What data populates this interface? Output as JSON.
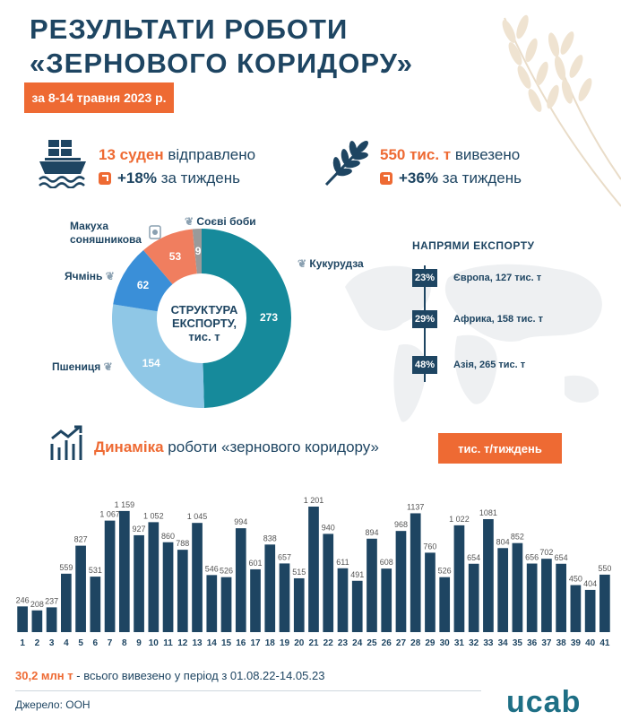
{
  "header": {
    "title_line1": "РЕЗУЛЬТАТИ РОБОТИ",
    "title_line2": "«ЗЕРНОВОГО КОРИДОРУ»",
    "date_range": "за 8-14 травня 2023 р."
  },
  "stats": {
    "ships": {
      "value": "13 суден",
      "text": "відправлено",
      "change": "+18%",
      "change_text": "за тиждень",
      "icon": "ship-icon"
    },
    "tonnage": {
      "value": "550 тис. т",
      "text": "вивезено",
      "change": "+36%",
      "change_text": "за тиждень",
      "icon": "wheat-icon"
    }
  },
  "structure": {
    "center_line1": "СТРУКТУРА",
    "center_line2": "ЕКСПОРТУ,",
    "center_line3": "тис. т"
  },
  "directions": {
    "title": "НАПРЯМИ ЕКСПОРТУ",
    "items": [
      {
        "pct": "23%",
        "label": "Європа, 127 тис. т"
      },
      {
        "pct": "29%",
        "label": "Африка, 158 тис. т"
      },
      {
        "pct": "48%",
        "label": "Азія, 265 тис. т"
      }
    ]
  },
  "dynamics": {
    "accent": "Динаміка",
    "rest": "роботи «зернового коридору»",
    "unit": "тис. т/тиждень"
  },
  "footer": {
    "total_value": "30,2 млн т",
    "total_text": "- всього вивезено у період з 01.08.22-14.05.23",
    "source": "Джерело: ООН",
    "logo": "ucab"
  },
  "colors": {
    "navy": "#1e4562",
    "orange": "#ee6a33",
    "teal": "#168a9b",
    "light_blue": "#8fc7e6",
    "blue": "#3a8fd8",
    "coral": "#f07e5f",
    "grey": "#9a9a9a"
  },
  "chart_data": [
    {
      "type": "pie",
      "title": "СТРУКТУРА ЕКСПОРТУ, тис. т",
      "categories": [
        "Кукурудза",
        "Пшениця",
        "Ячмінь",
        "Макуха соняшникова",
        "Соєві боби"
      ],
      "values": [
        273,
        154,
        62,
        53,
        9
      ],
      "colors": [
        "#168a9b",
        "#8fc7e6",
        "#3a8fd8",
        "#f07e5f",
        "#9a9a9a"
      ]
    },
    {
      "type": "bar",
      "title": "Динаміка роботи «зернового коридору»",
      "ylabel": "тис. т/тиждень",
      "categories": [
        "1",
        "2",
        "3",
        "4",
        "5",
        "6",
        "7",
        "8",
        "9",
        "10",
        "11",
        "12",
        "13",
        "14",
        "15",
        "16",
        "17",
        "18",
        "19",
        "20",
        "21",
        "22",
        "23",
        "24",
        "25",
        "26",
        "27",
        "28",
        "29",
        "30",
        "31",
        "32",
        "33",
        "34",
        "35",
        "36",
        "37",
        "38",
        "39",
        "40",
        "41"
      ],
      "values": [
        246,
        208,
        237,
        559,
        827,
        531,
        1067,
        1159,
        927,
        1052,
        860,
        788,
        1045,
        546,
        526,
        994,
        601,
        838,
        657,
        515,
        1201,
        940,
        611,
        491,
        894,
        608,
        968,
        1137,
        760,
        526,
        1022,
        654,
        1081,
        804,
        852,
        656,
        702,
        654,
        450,
        404,
        550
      ],
      "labels": [
        "246",
        "208",
        "237",
        "559",
        "827",
        "531",
        "1 067",
        "1 159",
        "927",
        "1 052",
        "860",
        "788",
        "1 045",
        "546",
        "526",
        "994",
        "601",
        "838",
        "657",
        "515",
        "1 201",
        "940",
        "611",
        "491",
        "894",
        "608",
        "968",
        "1137",
        "760",
        "526",
        "1 022",
        "654",
        "1081",
        "804",
        "852",
        "656",
        "702",
        "654",
        "450",
        "404",
        "550"
      ],
      "ylim": [
        0,
        1201
      ]
    }
  ]
}
